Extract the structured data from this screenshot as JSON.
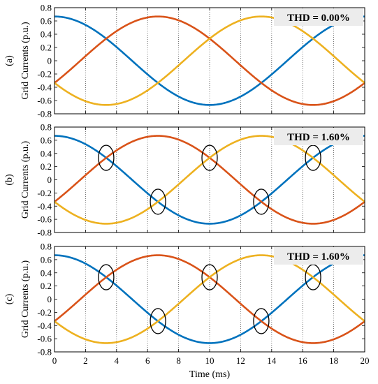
{
  "chart_data": [
    {
      "type": "line",
      "panel_label": "(a)",
      "ylabel": "Grid Currents (p.u.)",
      "annotation": "THD =  0.00%",
      "xlim": [
        0,
        20
      ],
      "ylim": [
        -0.8,
        0.8
      ],
      "yticks": [
        "0.8",
        "0.6",
        "0.4",
        "0.2",
        "0",
        "-0.2",
        "-0.4",
        "-0.6",
        "-0.8"
      ],
      "xgrid_dotted": [
        2,
        4,
        6,
        8,
        10,
        12,
        14,
        16,
        18
      ],
      "amplitude": 0.667,
      "period_ms": 20,
      "series": [
        {
          "color": "#0072BD",
          "phase_ms": 0
        },
        {
          "color": "#D95319",
          "phase_ms": 6.667
        },
        {
          "color": "#EDB120",
          "phase_ms": 13.333
        }
      ],
      "markers": []
    },
    {
      "type": "line",
      "panel_label": "(b)",
      "ylabel": "Grid Currents (p.u.)",
      "annotation": "THD =  1.60%",
      "xlim": [
        0,
        20
      ],
      "ylim": [
        -0.8,
        0.8
      ],
      "yticks": [
        "0.8",
        "0.6",
        "0.4",
        "0.2",
        "0",
        "-0.2",
        "-0.4",
        "-0.6",
        "-0.8"
      ],
      "xgrid_dotted": [
        2,
        4,
        6,
        8,
        10,
        12,
        14,
        16,
        18
      ],
      "amplitude": 0.667,
      "period_ms": 20,
      "series": [
        {
          "color": "#0072BD",
          "phase_ms": 0
        },
        {
          "color": "#D95319",
          "phase_ms": 6.667
        },
        {
          "color": "#EDB120",
          "phase_ms": 13.333
        }
      ],
      "markers": [
        {
          "x": 3.33,
          "y": 0.333
        },
        {
          "x": 6.67,
          "y": -0.333
        },
        {
          "x": 10.0,
          "y": 0.333
        },
        {
          "x": 13.33,
          "y": -0.333
        },
        {
          "x": 16.67,
          "y": 0.333
        }
      ]
    },
    {
      "type": "line",
      "panel_label": "(c)",
      "ylabel": "Grid Currents (p.u.)",
      "annotation": "THD =  1.60%",
      "xlabel": "Time (ms)",
      "xlim": [
        0,
        20
      ],
      "ylim": [
        -0.8,
        0.8
      ],
      "xticks": [
        "0",
        "2",
        "4",
        "6",
        "8",
        "10",
        "12",
        "14",
        "16",
        "18",
        "20"
      ],
      "yticks": [
        "0.8",
        "0.6",
        "0.4",
        "0.2",
        "0",
        "-0.2",
        "-0.4",
        "-0.6",
        "-0.8"
      ],
      "xgrid_dotted": [
        2,
        4,
        6,
        8,
        10,
        12,
        14,
        16,
        18
      ],
      "amplitude": 0.667,
      "period_ms": 20,
      "series": [
        {
          "color": "#0072BD",
          "phase_ms": 0
        },
        {
          "color": "#D95319",
          "phase_ms": 6.667
        },
        {
          "color": "#EDB120",
          "phase_ms": 13.333
        }
      ],
      "markers": [
        {
          "x": 3.33,
          "y": 0.333
        },
        {
          "x": 6.67,
          "y": -0.333
        },
        {
          "x": 10.0,
          "y": 0.333
        },
        {
          "x": 13.33,
          "y": -0.333
        },
        {
          "x": 16.67,
          "y": 0.333
        }
      ]
    }
  ]
}
